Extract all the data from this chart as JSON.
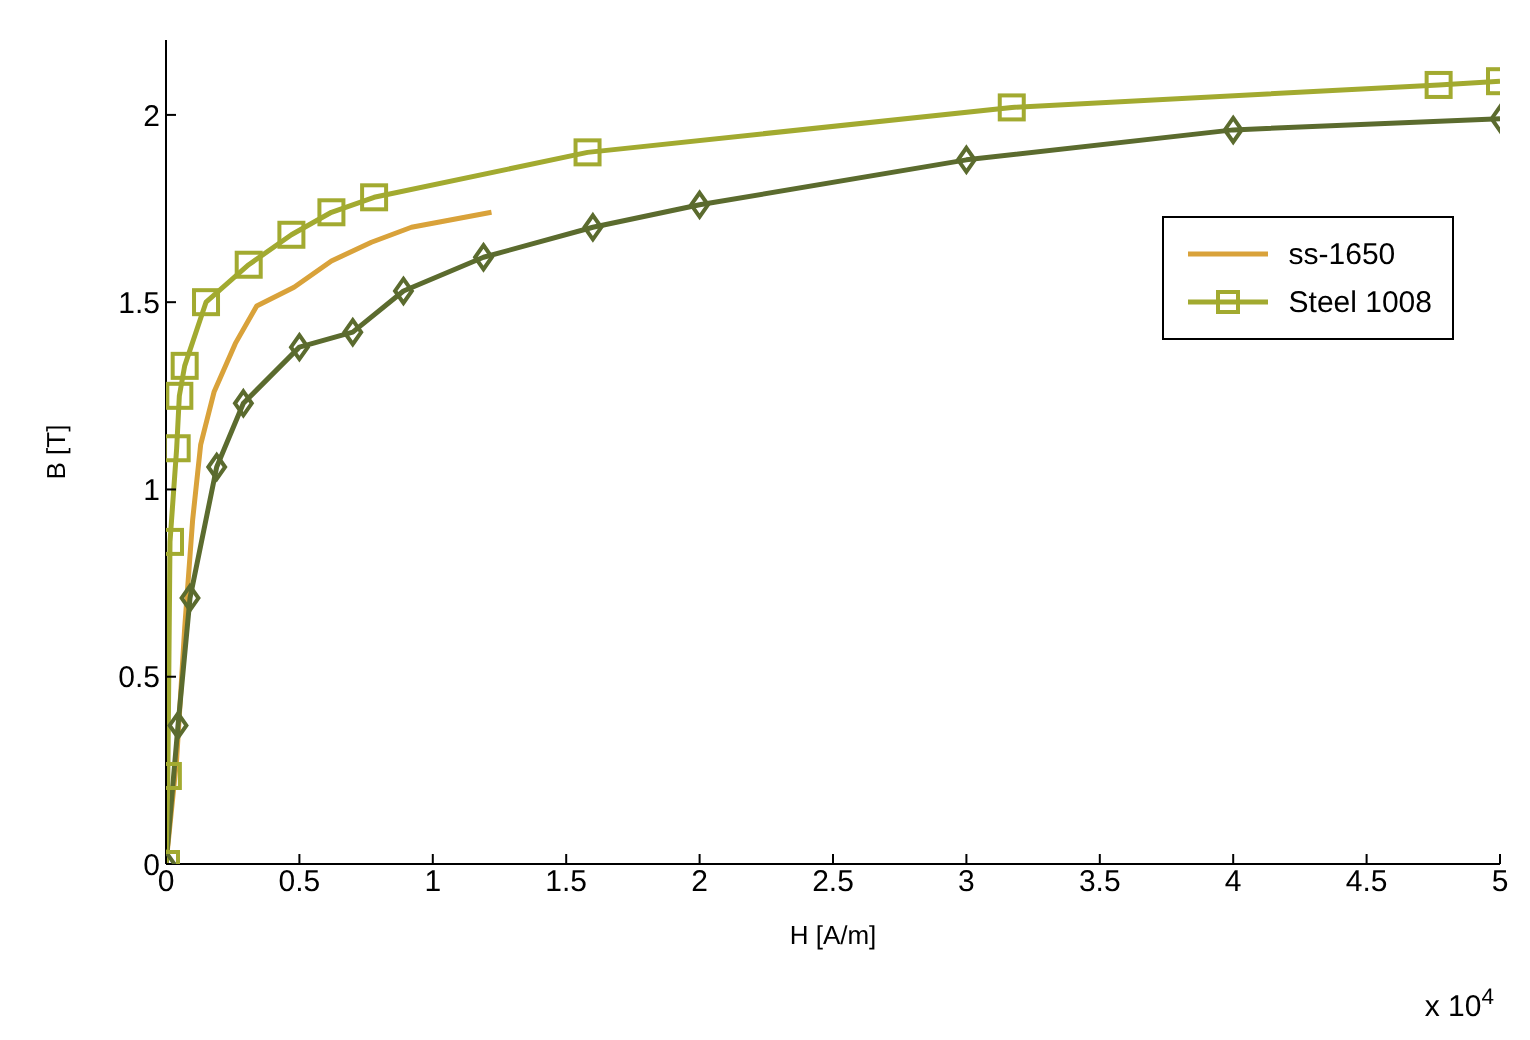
{
  "chart_data": {
    "type": "line",
    "xlabel": "H [A/m]",
    "ylabel": "B [T]",
    "xlim": [
      0,
      5
    ],
    "xticks": [
      0,
      0.5,
      1,
      1.5,
      2,
      2.5,
      3,
      3.5,
      4,
      4.5,
      5
    ],
    "ylim": [
      0,
      2.2
    ],
    "yticks": [
      0,
      0.5,
      1,
      1.5,
      2
    ],
    "grid": false,
    "legend": "top right",
    "annotations": [
      "x 10$^{4}$"
    ],
    "series": [
      {
        "name": "ss-1650",
        "color": "#d9a23a",
        "marker": "none",
        "x": [
          0,
          0.04,
          0.07,
          0.1,
          0.13,
          0.18,
          0.26,
          0.34,
          0.48,
          0.62,
          0.77,
          0.92,
          1.22
        ],
        "values": [
          0,
          0.28,
          0.63,
          0.92,
          1.12,
          1.26,
          1.39,
          1.49,
          1.54,
          1.61,
          1.66,
          1.7,
          1.74
        ]
      },
      {
        "color": "#5b6b2e",
        "marker": "diamond",
        "x": [
          0,
          0.045,
          0.09,
          0.19,
          0.29,
          0.5,
          0.7,
          0.89,
          1.19,
          1.6,
          2.0,
          3.0,
          4.0,
          5.0
        ],
        "values": [
          0,
          0.37,
          0.71,
          1.06,
          1.23,
          1.38,
          1.42,
          1.53,
          1.62,
          1.7,
          1.76,
          1.88,
          1.96,
          1.99
        ]
      },
      {
        "name": "Steel 1008",
        "color": "#a2aa30",
        "marker": "square",
        "x": [
          0,
          0.007,
          0.015,
          0.04,
          0.05,
          0.07,
          0.15,
          0.31,
          0.47,
          0.62,
          0.78,
          1.58,
          3.17,
          4.77,
          5.0
        ],
        "values": [
          0,
          0.235,
          0.86,
          1.11,
          1.25,
          1.33,
          1.5,
          1.6,
          1.68,
          1.74,
          1.78,
          1.9,
          2.02,
          2.08,
          2.09
        ]
      }
    ]
  }
}
